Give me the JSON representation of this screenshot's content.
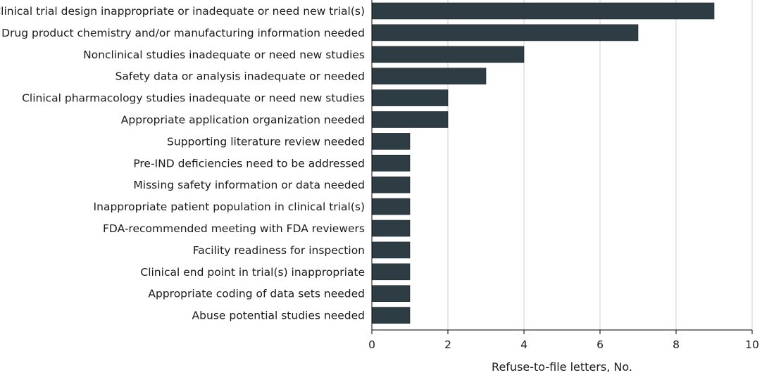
{
  "chart_data": {
    "type": "bar",
    "orientation": "horizontal",
    "categories": [
      "Clinical trial design inappropriate or inadequate or need new trial(s)",
      "Drug product chemistry and/or manufacturing information needed",
      "Nonclinical studies inadequate or need new studies",
      "Safety data or analysis inadequate or needed",
      "Clinical pharmacology studies inadequate or need new studies",
      "Appropriate application organization needed",
      "Supporting literature review needed",
      "Pre-IND deficiencies need to be addressed",
      "Missing safety information or data needed",
      "Inappropriate patient population in clinical trial(s)",
      "FDA-recommended meeting with FDA reviewers",
      "Facility readiness for inspection",
      "Clinical end point in trial(s) inappropriate",
      "Appropriate coding of data sets needed",
      "Abuse potential studies needed"
    ],
    "values": [
      9,
      7,
      4,
      3,
      2,
      2,
      1,
      1,
      1,
      1,
      1,
      1,
      1,
      1,
      1
    ],
    "xlabel": "Refuse-to-file letters, No.",
    "ylabel": "",
    "title": "",
    "xlim": [
      0,
      10
    ],
    "xticks": [
      0,
      2,
      4,
      6,
      8,
      10
    ],
    "grid": "vertical",
    "bar_color": "#2e3d44",
    "grid_color": "#cfcfcf"
  }
}
